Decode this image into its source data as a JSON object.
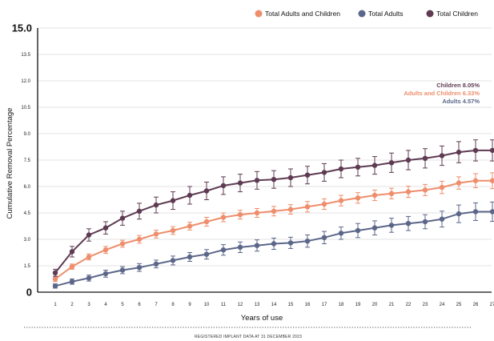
{
  "colors": {
    "adults_and_children": "#EE8E6C",
    "adults": "#5B6689",
    "children": "#5E3B52",
    "grid": "#e3e3e3",
    "axis": "#111111"
  },
  "legend": [
    {
      "label": "Total Adults and Children",
      "color": "#EE8E6C"
    },
    {
      "label": "Total Adults",
      "color": "#5B6689"
    },
    {
      "label": "Total Children",
      "color": "#5E3B52"
    }
  ],
  "end_labels": [
    {
      "text": "Children 8.05%",
      "color": "#5E3B52"
    },
    {
      "text": "Adults and Children 6.33%",
      "color": "#EE8E6C"
    },
    {
      "text": "Adults 4.57%",
      "color": "#5B6689"
    }
  ],
  "footnote": "REGISTERED IMPLANT DATA AT 31 DECEMBER 2023",
  "chart_data": {
    "type": "line",
    "xlabel": "Years of use",
    "ylabel": "Cumulative Removal Percentage",
    "x": [
      1,
      2,
      3,
      4,
      5,
      6,
      7,
      8,
      9,
      10,
      11,
      12,
      13,
      14,
      15,
      16,
      17,
      18,
      19,
      20,
      21,
      22,
      23,
      24,
      25,
      26,
      27
    ],
    "x_tick_labels": [
      "1",
      "2",
      "3",
      "4",
      "5",
      "6",
      "7",
      "8",
      "9",
      "10",
      "11",
      "12",
      "13",
      "14",
      "15",
      "16",
      "17",
      "18",
      "19",
      "20",
      "21",
      "22",
      "23",
      "24",
      "25",
      "26",
      "27"
    ],
    "ylim": [
      0,
      15
    ],
    "y_ticks": [
      0,
      1.5,
      3.0,
      4.5,
      6.0,
      7.5,
      9.0,
      10.5,
      12.0,
      13.5,
      15.0
    ],
    "y_tick_labels": [
      "0",
      "1.5",
      "3.0",
      "4.5",
      "6.0",
      "7.5",
      "9.0",
      "10.5",
      "12.0",
      "13.5",
      "15.0"
    ],
    "grid": true,
    "legend_position": "top-right",
    "series": [
      {
        "name": "Total Adults and Children",
        "color": "#EE8E6C",
        "values": [
          0.75,
          1.45,
          2.0,
          2.4,
          2.75,
          3.0,
          3.3,
          3.5,
          3.75,
          4.0,
          4.25,
          4.4,
          4.5,
          4.6,
          4.7,
          4.85,
          5.0,
          5.2,
          5.35,
          5.5,
          5.6,
          5.7,
          5.8,
          5.95,
          6.2,
          6.33,
          6.33
        ],
        "err": [
          0.15,
          0.15,
          0.17,
          0.2,
          0.2,
          0.22,
          0.22,
          0.22,
          0.22,
          0.25,
          0.25,
          0.25,
          0.25,
          0.27,
          0.27,
          0.3,
          0.3,
          0.3,
          0.3,
          0.3,
          0.3,
          0.32,
          0.32,
          0.35,
          0.35,
          0.4,
          0.45
        ]
      },
      {
        "name": "Total Adults",
        "color": "#5B6689",
        "values": [
          0.35,
          0.6,
          0.8,
          1.05,
          1.25,
          1.4,
          1.6,
          1.8,
          2.0,
          2.15,
          2.4,
          2.55,
          2.65,
          2.75,
          2.8,
          2.9,
          3.1,
          3.35,
          3.5,
          3.65,
          3.8,
          3.9,
          4.0,
          4.15,
          4.45,
          4.57,
          4.57
        ],
        "err": [
          0.12,
          0.15,
          0.17,
          0.2,
          0.2,
          0.22,
          0.22,
          0.25,
          0.25,
          0.27,
          0.3,
          0.3,
          0.32,
          0.32,
          0.32,
          0.35,
          0.35,
          0.35,
          0.4,
          0.4,
          0.4,
          0.4,
          0.4,
          0.45,
          0.5,
          0.5,
          0.55
        ]
      },
      {
        "name": "Total Children",
        "color": "#5E3B52",
        "values": [
          1.1,
          2.3,
          3.25,
          3.65,
          4.2,
          4.6,
          4.95,
          5.2,
          5.5,
          5.75,
          6.05,
          6.2,
          6.35,
          6.4,
          6.5,
          6.65,
          6.8,
          7.0,
          7.1,
          7.2,
          7.35,
          7.5,
          7.6,
          7.75,
          7.95,
          8.05,
          8.05
        ],
        "err": [
          0.2,
          0.3,
          0.35,
          0.35,
          0.4,
          0.45,
          0.45,
          0.5,
          0.5,
          0.5,
          0.5,
          0.5,
          0.5,
          0.5,
          0.5,
          0.5,
          0.5,
          0.5,
          0.5,
          0.5,
          0.55,
          0.55,
          0.55,
          0.55,
          0.6,
          0.6,
          0.6
        ]
      }
    ]
  }
}
